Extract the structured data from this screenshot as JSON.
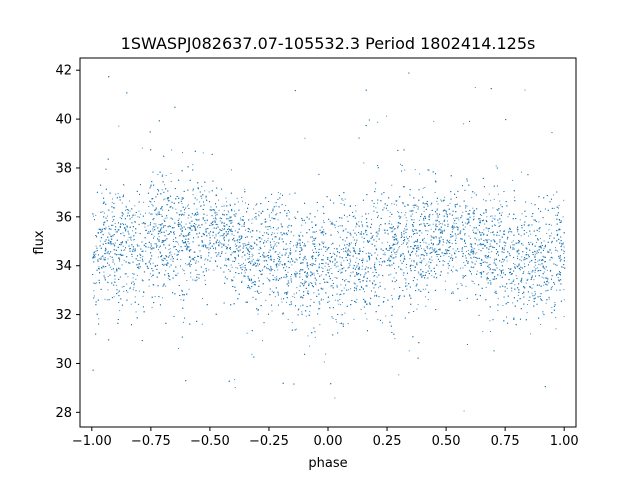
{
  "chart_data": {
    "type": "scatter",
    "title": "1SWASPJ082637.07-105532.3 Period 1802414.125s",
    "xlabel": "phase",
    "ylabel": "flux",
    "xlim": [
      -1.05,
      1.05
    ],
    "ylim": [
      27.4,
      42.5
    ],
    "xticks": [
      -1.0,
      -0.75,
      -0.5,
      -0.25,
      0.0,
      0.25,
      0.5,
      0.75,
      1.0
    ],
    "xtick_labels": [
      "−1.00",
      "−0.75",
      "−0.50",
      "−0.25",
      "0.00",
      "0.25",
      "0.50",
      "0.75",
      "1.00"
    ],
    "yticks": [
      28,
      30,
      32,
      34,
      36,
      38,
      40,
      42
    ],
    "ytick_labels": [
      "28",
      "30",
      "32",
      "34",
      "36",
      "38",
      "40",
      "42"
    ],
    "grid": false,
    "marker_color": "#1f77b4",
    "series": [
      {
        "x": [
          -0.98,
          -0.95,
          -0.9,
          -0.85,
          -0.8,
          -0.75,
          -0.7,
          -0.65,
          -0.6,
          -0.55,
          -0.5,
          -0.45,
          -0.4,
          -0.35,
          -0.3,
          -0.25,
          -0.2,
          -0.15,
          -0.1,
          -0.05,
          0.0,
          0.05,
          0.1,
          0.15,
          0.2,
          0.25,
          0.3,
          0.35,
          0.4,
          0.45,
          0.5,
          0.55,
          0.6,
          0.65,
          0.7,
          0.75,
          0.8,
          0.85,
          0.9,
          0.95,
          0.98
        ],
        "y": [
          34.2,
          35.0,
          34.6,
          34.8,
          34.4,
          35.3,
          35.6,
          35.1,
          34.9,
          35.4,
          35.2,
          35.5,
          34.9,
          34.7,
          34.5,
          34.3,
          34.4,
          34.0,
          33.9,
          34.1,
          34.0,
          34.2,
          34.1,
          34.3,
          34.6,
          34.9,
          34.8,
          35.0,
          34.9,
          35.2,
          35.3,
          35.2,
          35.1,
          34.8,
          34.7,
          34.5,
          34.4,
          34.1,
          34.2,
          34.3,
          34.4
        ],
        "spread": [
          1.6,
          1.8,
          1.7,
          1.7,
          1.8,
          1.8,
          1.7,
          1.7,
          1.7,
          1.5,
          1.3,
          1.2,
          1.4,
          1.5,
          1.6,
          1.6,
          1.7,
          1.7,
          1.6,
          1.6,
          1.6,
          1.7,
          1.6,
          1.6,
          1.7,
          1.8,
          1.8,
          1.7,
          1.7,
          1.4,
          1.3,
          1.3,
          1.5,
          1.6,
          1.7,
          1.7,
          1.6,
          1.6,
          1.6,
          1.7,
          1.6
        ]
      }
    ]
  }
}
